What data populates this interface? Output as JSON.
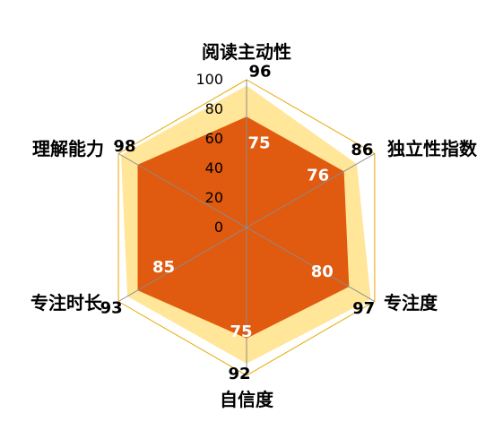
{
  "chart_data": {
    "type": "radar",
    "categories": [
      "阅读主动性",
      "独立性指数",
      "专注度",
      "自信度",
      "专注时长",
      "理解能力"
    ],
    "series": [
      {
        "values": [
          96,
          86,
          97,
          92,
          93,
          98
        ],
        "color": "#FFE699"
      },
      {
        "values": [
          75,
          76,
          80,
          75,
          85,
          85
        ],
        "color": "#E05A0F"
      }
    ],
    "ticks": [
      0,
      20,
      40,
      60,
      80,
      100
    ],
    "range": [
      0,
      100
    ],
    "grid_color": "#E6A800",
    "spoke_color": "#8C8C8C",
    "legend": "none"
  }
}
